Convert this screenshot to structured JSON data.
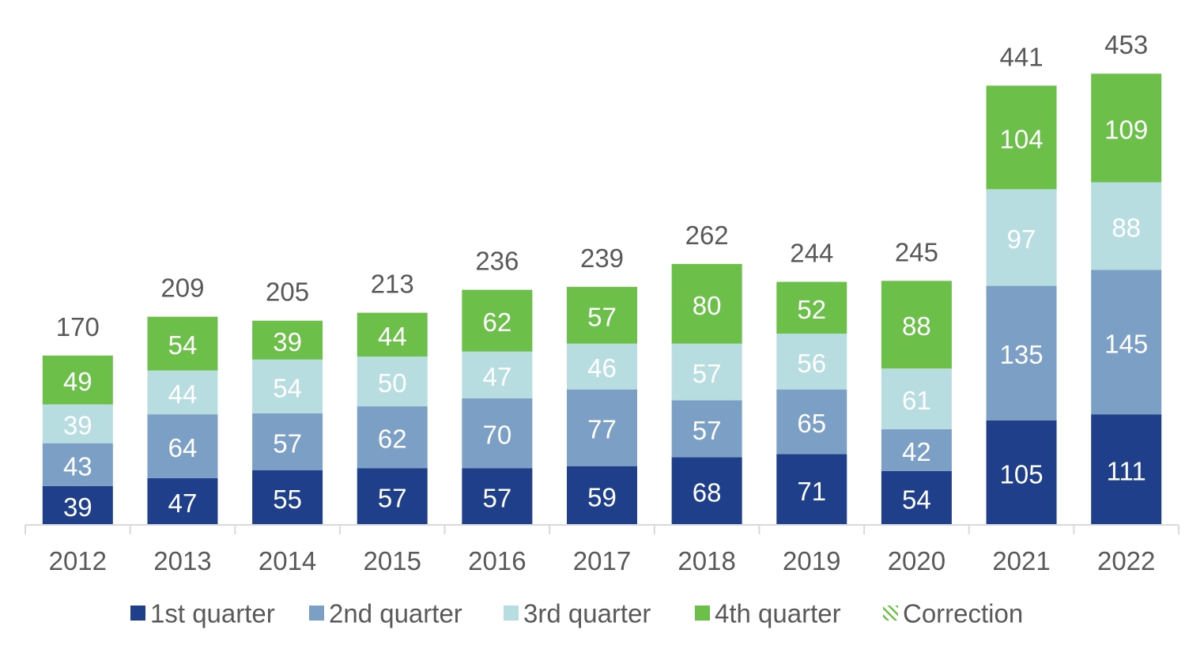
{
  "chart_data": {
    "type": "bar",
    "stacked": true,
    "categories": [
      "2012",
      "2013",
      "2014",
      "2015",
      "2016",
      "2017",
      "2018",
      "2019",
      "2020",
      "2021",
      "2022"
    ],
    "series": [
      {
        "name": "1st quarter",
        "color": "#1f3f8a",
        "label_color": "#ffffff",
        "values": [
          39,
          47,
          55,
          57,
          57,
          59,
          68,
          71,
          54,
          105,
          111
        ]
      },
      {
        "name": "2nd quarter",
        "color": "#7b9fc5",
        "label_color": "#ffffff",
        "values": [
          43,
          64,
          57,
          62,
          70,
          77,
          57,
          65,
          42,
          135,
          145
        ]
      },
      {
        "name": "3rd quarter",
        "color": "#b7dde0",
        "label_color": "#ffffff",
        "values": [
          39,
          44,
          54,
          50,
          47,
          46,
          57,
          56,
          61,
          97,
          88
        ]
      },
      {
        "name": "4th quarter",
        "color": "#6cc04a",
        "label_color": "#ffffff",
        "values": [
          49,
          54,
          39,
          44,
          62,
          57,
          80,
          52,
          88,
          104,
          109
        ]
      },
      {
        "name": "Correction",
        "color": "#6cc04a",
        "pattern": "hatched",
        "values": [
          0,
          0,
          0,
          0,
          0,
          0,
          0,
          0,
          0,
          0,
          0
        ]
      }
    ],
    "totals": [
      170,
      209,
      205,
      213,
      236,
      239,
      262,
      244,
      245,
      441,
      453
    ],
    "ylim": [
      0,
      460
    ],
    "grid": false,
    "legend_position": "bottom",
    "title": "",
    "xlabel": "",
    "ylabel": ""
  }
}
